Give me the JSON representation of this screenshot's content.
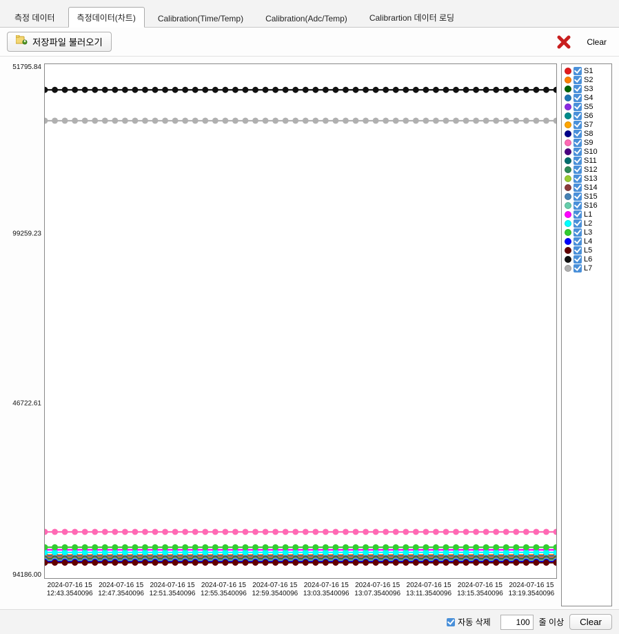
{
  "tabs": [
    {
      "label": "측정 데이터",
      "active": false
    },
    {
      "label": "측정데이터(차트)",
      "active": true
    },
    {
      "label": "Calibration(Time/Temp)",
      "active": false
    },
    {
      "label": "Calibration(Adc/Temp)",
      "active": false
    },
    {
      "label": "Calibrartion 데이터 로딩",
      "active": false
    }
  ],
  "toolbar": {
    "load_label": "저장파일 불러오기",
    "clear_label": "Clear",
    "x_icon_color": "#c81e1e"
  },
  "chart": {
    "type": "line",
    "background_color": "#ffffff",
    "border_color": "#888888",
    "ylim": [
      -94186.0,
      51795.84
    ],
    "yticks": [
      {
        "value": 51795.84,
        "label": "51795.84"
      },
      {
        "value": 99259.23,
        "label": "99259.23",
        "raw_position_fraction": 0.33
      },
      {
        "value": 46722.61,
        "label": "46722.61",
        "raw_position_fraction": 0.66
      },
      {
        "value": -94186.0,
        "label": "94186.00"
      }
    ],
    "xticks": [
      "2024-07-16 15\n12:43.3540096",
      "2024-07-16 15\n12:47.3540096",
      "2024-07-16 15\n12:51.3540096",
      "2024-07-16 15\n12:55.3540096",
      "2024-07-16 15\n12:59.3540096",
      "2024-07-16 15\n13:03.3540096",
      "2024-07-16 15\n13:07.3540096",
      "2024-07-16 15\n13:11.3540096",
      "2024-07-16 15\n13:15.3540096",
      "2024-07-16 15\n13:19.3540096"
    ],
    "tick_fontsize": 10,
    "line_width": 1.5,
    "marker": "circle",
    "marker_size": 3,
    "series": [
      {
        "name": "S1",
        "color": "#e41a1c",
        "y_fraction": 0.955
      },
      {
        "name": "S2",
        "color": "#ff7f00",
        "y_fraction": 0.955
      },
      {
        "name": "S3",
        "color": "#006400",
        "y_fraction": 0.957
      },
      {
        "name": "S4",
        "color": "#1f77b4",
        "y_fraction": 0.957
      },
      {
        "name": "S5",
        "color": "#8a2be2",
        "y_fraction": 0.959
      },
      {
        "name": "S6",
        "color": "#008b8b",
        "y_fraction": 0.96
      },
      {
        "name": "S7",
        "color": "#ffa500",
        "y_fraction": 0.96
      },
      {
        "name": "S8",
        "color": "#00008b",
        "y_fraction": 0.962
      },
      {
        "name": "S9",
        "color": "#ff69b4",
        "y_fraction": 0.91
      },
      {
        "name": "S10",
        "color": "#4b0082",
        "y_fraction": 0.962
      },
      {
        "name": "S11",
        "color": "#006d6d",
        "y_fraction": 0.963
      },
      {
        "name": "S12",
        "color": "#2e8b57",
        "y_fraction": 0.963
      },
      {
        "name": "S13",
        "color": "#9acd32",
        "y_fraction": 0.965
      },
      {
        "name": "S14",
        "color": "#8b3a3a",
        "y_fraction": 0.965
      },
      {
        "name": "S15",
        "color": "#4682b4",
        "y_fraction": 0.966
      },
      {
        "name": "S16",
        "color": "#66cdaa",
        "y_fraction": 0.966
      },
      {
        "name": "L1",
        "color": "#ff00ff",
        "y_fraction": 0.945
      },
      {
        "name": "L2",
        "color": "#00ffff",
        "y_fraction": 0.95
      },
      {
        "name": "L3",
        "color": "#32cd32",
        "y_fraction": 0.94
      },
      {
        "name": "L4",
        "color": "#0000ff",
        "y_fraction": 0.968
      },
      {
        "name": "L5",
        "color": "#630000",
        "y_fraction": 0.97
      },
      {
        "name": "L6",
        "color": "#111111",
        "y_fraction": 0.05
      },
      {
        "name": "L7",
        "color": "#b0b0b0",
        "y_fraction": 0.11
      }
    ],
    "marker_count": 52
  },
  "bottom": {
    "auto_delete_label": "자동 삭제",
    "auto_delete_checked": true,
    "threshold_value": "100",
    "threshold_suffix": "줄 이상",
    "clear_label": "Clear"
  }
}
